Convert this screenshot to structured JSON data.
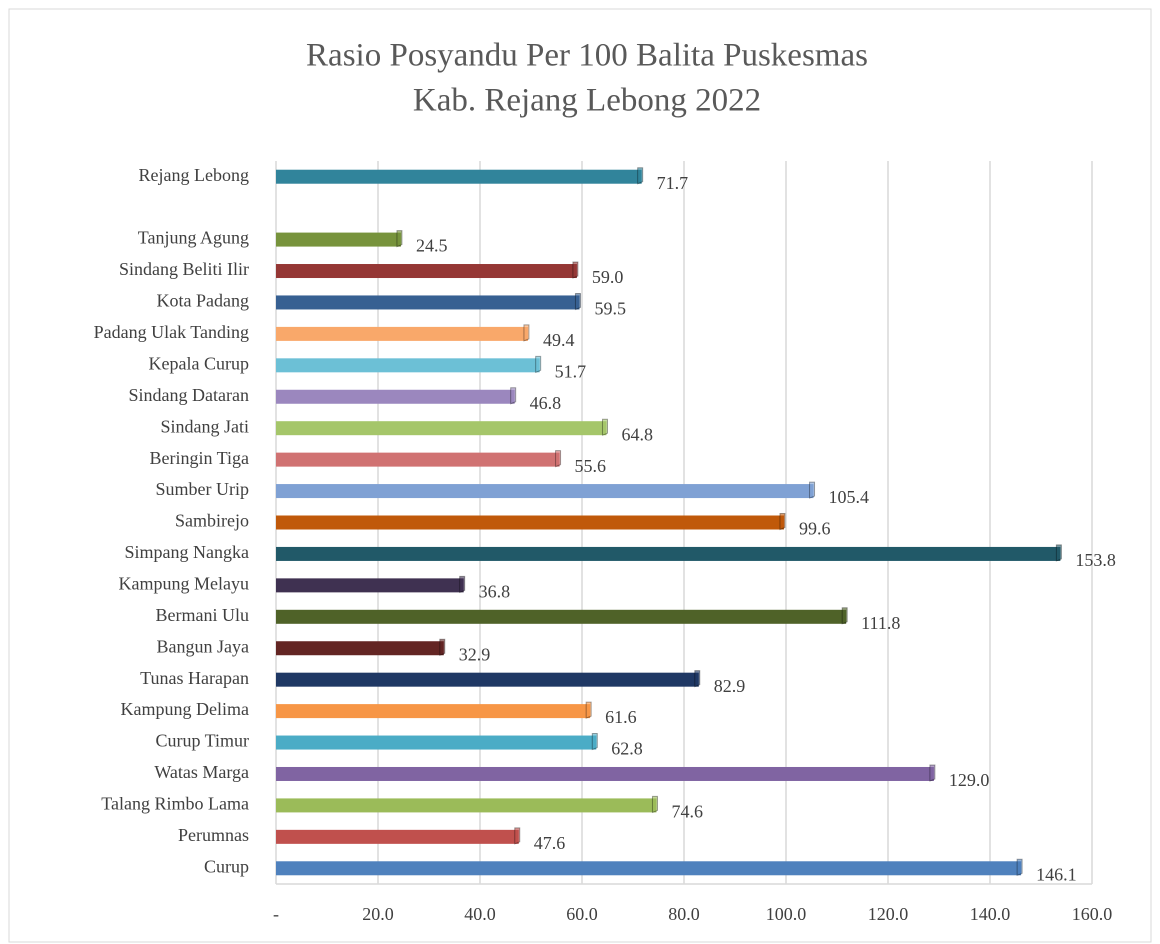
{
  "chart_data": {
    "type": "bar",
    "orientation": "horizontal",
    "title": [
      "Rasio Posyandu Per 100 Balita Puskesmas",
      "Kab. Rejang Lebong 2022"
    ],
    "categories": [
      "Rejang Lebong",
      null,
      "Tanjung Agung",
      "Sindang Beliti Ilir",
      "Kota Padang",
      "Padang Ulak Tanding",
      "Kepala Curup",
      "Sindang Dataran",
      "Sindang Jati",
      "Beringin Tiga",
      "Sumber Urip",
      "Sambirejo",
      "Simpang Nangka",
      "Kampung Melayu",
      "Bermani Ulu",
      "Bangun Jaya",
      "Tunas Harapan",
      "Kampung Delima",
      "Curup Timur",
      "Watas Marga",
      "Talang Rimbo Lama",
      "Perumnas",
      "Curup"
    ],
    "values": [
      71.7,
      null,
      24.5,
      59.0,
      59.5,
      49.4,
      51.7,
      46.8,
      64.8,
      55.6,
      105.4,
      99.6,
      153.8,
      36.8,
      111.8,
      32.9,
      82.9,
      61.6,
      62.8,
      129.0,
      74.6,
      47.6,
      146.1
    ],
    "value_labels": [
      "71.7",
      null,
      "24.5",
      "59.0",
      "59.5",
      "49.4",
      "51.7",
      "46.8",
      "64.8",
      "55.6",
      "105.4",
      "99.6",
      "153.8",
      "36.8",
      "111.8",
      "32.9",
      "82.9",
      "61.6",
      "62.8",
      "129.0",
      "74.6",
      "47.6",
      "146.1"
    ],
    "colors": [
      "#31849b",
      null,
      "#77933c",
      "#953735",
      "#376092",
      "#f9a86a",
      "#6cc0d6",
      "#9b87be",
      "#a5c66a",
      "#d07272",
      "#7fa1d4",
      "#c0590a",
      "#215968",
      "#3f3151",
      "#4f6228",
      "#632523",
      "#1f3864",
      "#f79646",
      "#4bacc6",
      "#8064a2",
      "#9bbb59",
      "#c0504d",
      "#4f81bd"
    ],
    "xlim": [
      0,
      160
    ],
    "xticks": [
      {
        "value": 0,
        "label": "-"
      },
      {
        "value": 20,
        "label": "20.0"
      },
      {
        "value": 40,
        "label": "40.0"
      },
      {
        "value": 60,
        "label": "60.0"
      },
      {
        "value": 80,
        "label": "80.0"
      },
      {
        "value": 100,
        "label": "100.0"
      },
      {
        "value": 120,
        "label": "120.0"
      },
      {
        "value": 140,
        "label": "140.0"
      },
      {
        "value": 160,
        "label": "160.0"
      }
    ],
    "grid": true
  }
}
